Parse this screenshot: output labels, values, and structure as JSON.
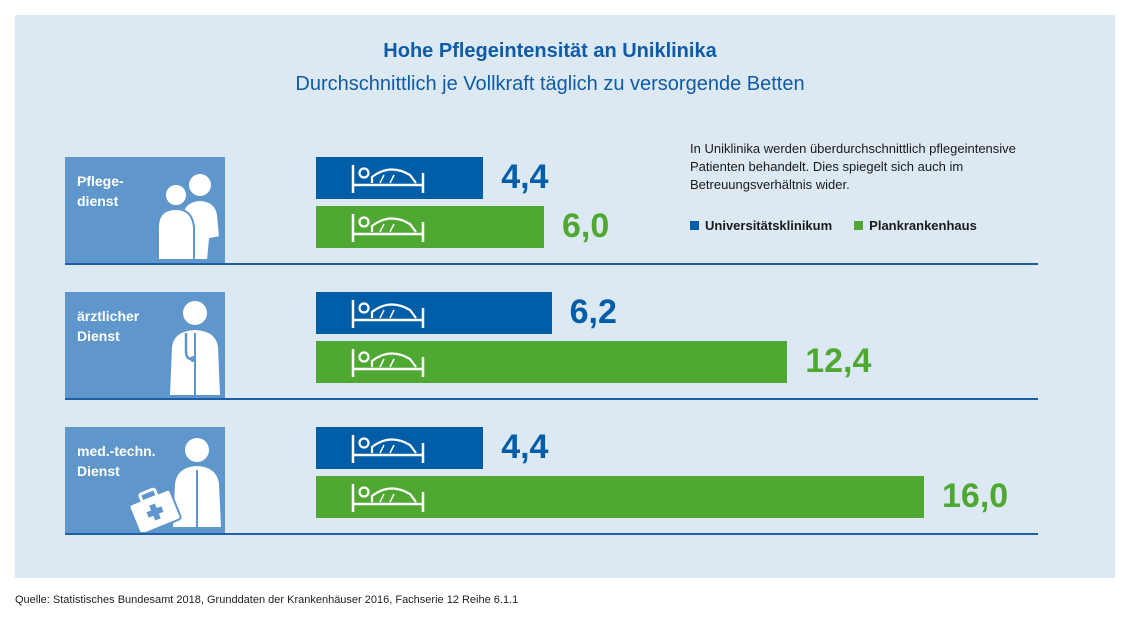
{
  "header": {
    "title": "Hohe Pflegeintensität an Uniklinika",
    "subtitle": "Durchschnittlich je Vollkraft täglich zu versorgende Betten"
  },
  "note": "In Uniklinika werden überdurchschnittlich pflegeintensive Patienten behandelt. Dies spiegelt sich auch im Betreuungsverhältnis wider.",
  "source": "Quelle: Statistisches Bundesamt 2018, Grunddaten der Krankenhäuser 2016, Fachserie 12 Reihe 6.1.1",
  "colors": {
    "uni": "#005ea8",
    "plan": "#4fa832",
    "group_box": "#5f97cd",
    "panel": "#dce9f3"
  },
  "icons": {
    "bar": "hospital-bed-icon",
    "groups": [
      "nurses-icon",
      "doctor-icon",
      "technician-icon"
    ]
  },
  "chart_data": {
    "type": "bar",
    "orientation": "horizontal",
    "title": "Hohe Pflegeintensität an Uniklinika",
    "subtitle": "Durchschnittlich je Vollkraft täglich zu versorgende Betten",
    "categories": [
      "Pflege-\ndienst",
      "ärztlicher\nDienst",
      "med.-techn.\nDienst"
    ],
    "series": [
      {
        "name": "Universitätsklinikum",
        "values": [
          4.4,
          6.2,
          4.4
        ],
        "labels": [
          "4,4",
          "6,2",
          "4,4"
        ]
      },
      {
        "name": "Plankrankenhaus",
        "values": [
          6.0,
          12.4,
          16.0
        ],
        "labels": [
          "6,0",
          "12,4",
          "16,0"
        ]
      }
    ],
    "xlim": [
      0,
      16
    ],
    "legend_position": "top-right"
  }
}
